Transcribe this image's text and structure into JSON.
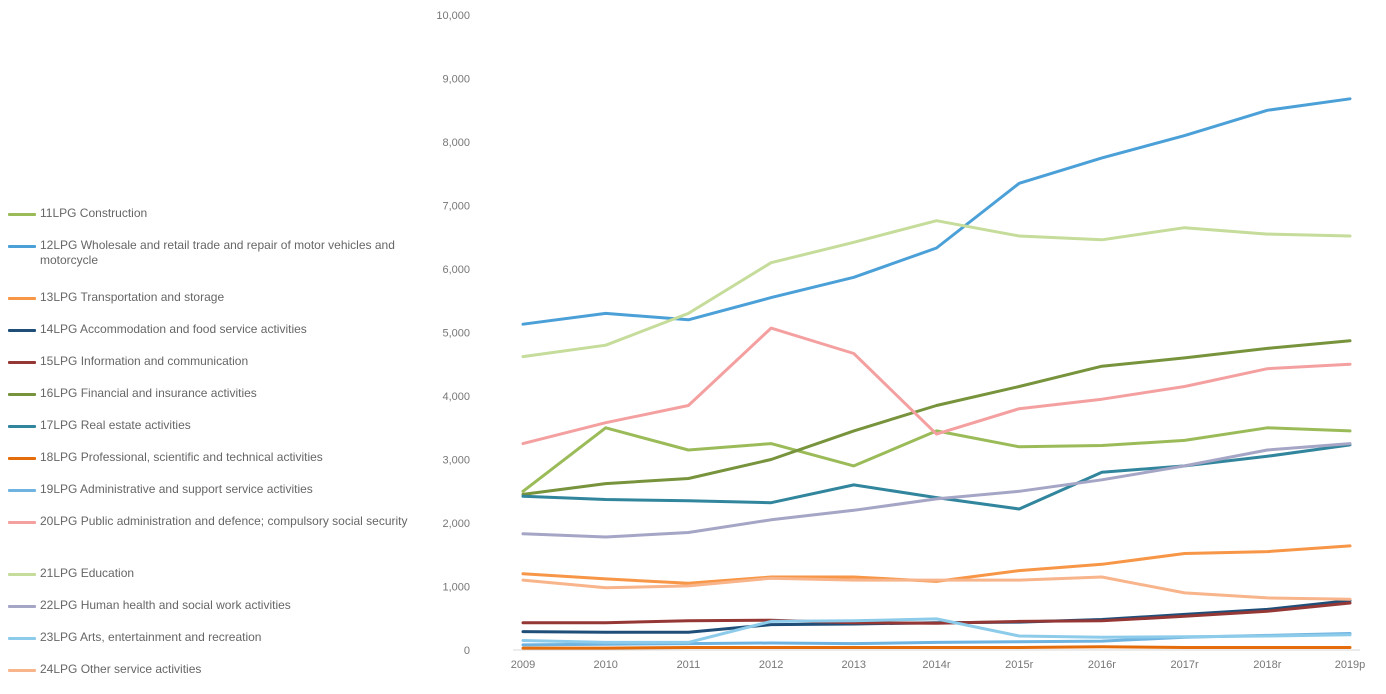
{
  "chart_data": {
    "type": "line",
    "title": "",
    "xlabel": "",
    "ylabel": "",
    "ylim": [
      0,
      10000
    ],
    "y_ticks": [
      "0",
      "1,000",
      "2,000",
      "3,000",
      "4,000",
      "5,000",
      "6,000",
      "7,000",
      "8,000",
      "9,000",
      "10,000"
    ],
    "y_tick_values": [
      0,
      1000,
      2000,
      3000,
      4000,
      5000,
      6000,
      7000,
      8000,
      9000,
      10000
    ],
    "categories": [
      "2009",
      "2010",
      "2011",
      "2012",
      "2013",
      "2014r",
      "2015r",
      "2016r",
      "2017r",
      "2018r",
      "2019p"
    ],
    "grid": false,
    "legend_position": "left",
    "series": [
      {
        "name": "11LPG Construction",
        "color": "#9bbb59",
        "values": [
          2500,
          3500,
          3150,
          3250,
          2900,
          3450,
          3200,
          3220,
          3300,
          3500,
          3450
        ]
      },
      {
        "name": "12LPG Wholesale and retail trade and repair of motor vehicles and motorcycle",
        "color": "#4ba0d8",
        "values": [
          5130,
          5300,
          5200,
          5550,
          5870,
          6330,
          7350,
          7750,
          8100,
          8500,
          8680
        ]
      },
      {
        "name": "13LPG Transportation and storage",
        "color": "#f79646",
        "values": [
          1200,
          1120,
          1050,
          1150,
          1150,
          1080,
          1250,
          1350,
          1520,
          1550,
          1640
        ]
      },
      {
        "name": "14LPG Accommodation and food service activities",
        "color": "#1f4e79",
        "values": [
          290,
          280,
          280,
          400,
          410,
          430,
          440,
          480,
          560,
          640,
          780
        ]
      },
      {
        "name": "15LPG Information and communication",
        "color": "#953735",
        "values": [
          430,
          430,
          460,
          470,
          430,
          420,
          450,
          460,
          530,
          610,
          740
        ]
      },
      {
        "name": "16LPG Financial and insurance activities",
        "color": "#77933c",
        "values": [
          2450,
          2620,
          2700,
          3000,
          3450,
          3850,
          4150,
          4470,
          4600,
          4750,
          4870
        ]
      },
      {
        "name": "17LPG Real estate activities",
        "color": "#31859c",
        "values": [
          2420,
          2370,
          2350,
          2320,
          2600,
          2400,
          2220,
          2800,
          2900,
          3050,
          3230
        ]
      },
      {
        "name": "18LPG Professional, scientific and technical activities",
        "color": "#e46c0a",
        "values": [
          30,
          30,
          40,
          40,
          40,
          40,
          40,
          50,
          40,
          40,
          40
        ]
      },
      {
        "name": "19LPG Administrative and support service activities",
        "color": "#6fb3e0",
        "values": [
          80,
          90,
          100,
          110,
          100,
          120,
          130,
          140,
          200,
          230,
          260
        ]
      },
      {
        "name": "20LPG Public administration and defence; compulsory social security",
        "color": "#f4a0a0",
        "values": [
          3250,
          3580,
          3850,
          5070,
          4670,
          3400,
          3800,
          3950,
          4150,
          4430,
          4500
        ]
      },
      {
        "name": "21LPG Education",
        "color": "#c5dc9a",
        "values": [
          4620,
          4800,
          5300,
          6100,
          6420,
          6760,
          6520,
          6460,
          6650,
          6550,
          6520
        ]
      },
      {
        "name": "22LPG Human health and social work activities",
        "color": "#a5a5c6",
        "values": [
          1830,
          1780,
          1850,
          2050,
          2200,
          2380,
          2500,
          2680,
          2900,
          3150,
          3250
        ]
      },
      {
        "name": "23LPG Arts, entertainment and recreation",
        "color": "#8ccbea",
        "values": [
          150,
          120,
          120,
          450,
          460,
          490,
          220,
          200,
          210,
          220,
          240
        ]
      },
      {
        "name": "24LPG Other service activities",
        "color": "#f8b48a",
        "values": [
          1100,
          980,
          1010,
          1130,
          1100,
          1100,
          1100,
          1150,
          900,
          820,
          800
        ]
      }
    ]
  }
}
